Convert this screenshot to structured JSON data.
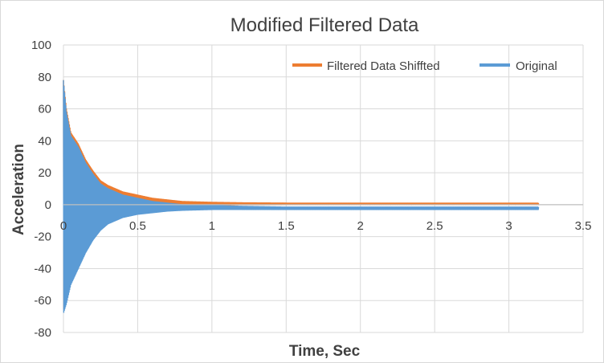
{
  "chart_data": {
    "type": "line",
    "title": "Modified Filtered Data",
    "xlabel": "Time, Sec",
    "ylabel": "Acceleration",
    "xlim": [
      0,
      3.5
    ],
    "ylim": [
      -80,
      100
    ],
    "xticks": [
      "0",
      "0.5",
      "1",
      "1.5",
      "2",
      "2.5",
      "3",
      "3.5"
    ],
    "yticks": [
      "100",
      "80",
      "60",
      "40",
      "20",
      "0",
      "-20",
      "-40",
      "-60",
      "-80"
    ],
    "grid": true,
    "legend_position": "top-right",
    "series": [
      {
        "name": "Filtered Data Shiffted",
        "color": "#ed7d31",
        "x": [
          0,
          0.02,
          0.05,
          0.1,
          0.15,
          0.2,
          0.25,
          0.3,
          0.4,
          0.5,
          0.6,
          0.7,
          0.8,
          1.0,
          1.2,
          1.5,
          2.0,
          2.5,
          3.0,
          3.2
        ],
        "upper": [
          78,
          60,
          45,
          38,
          28,
          21,
          15,
          12,
          8,
          6,
          4,
          3,
          2,
          1.5,
          1.2,
          1,
          1,
          1,
          1,
          1
        ],
        "lower": [
          -66,
          -60,
          -48,
          -38,
          -28,
          -20,
          -14,
          -10,
          -6,
          -4,
          -3,
          -2,
          -1.5,
          -0.5,
          0,
          0,
          0,
          0,
          0,
          0
        ]
      },
      {
        "name": "Original",
        "color": "#5b9bd5",
        "x": [
          0,
          0.02,
          0.05,
          0.1,
          0.15,
          0.2,
          0.25,
          0.3,
          0.4,
          0.5,
          0.6,
          0.7,
          0.8,
          1.0,
          1.2,
          1.5,
          2.0,
          2.5,
          3.0,
          3.2
        ],
        "upper": [
          78,
          58,
          43,
          36,
          26,
          19,
          13,
          10,
          6,
          4,
          2,
          1,
          0,
          -0.5,
          -1,
          -1.5,
          -1.5,
          -1.5,
          -1.5,
          -1.5
        ],
        "lower": [
          -68,
          -62,
          -50,
          -40,
          -30,
          -22,
          -16,
          -12,
          -8,
          -6,
          -5,
          -4,
          -3.5,
          -3,
          -3,
          -3,
          -3,
          -3,
          -3,
          -3
        ]
      }
    ]
  }
}
